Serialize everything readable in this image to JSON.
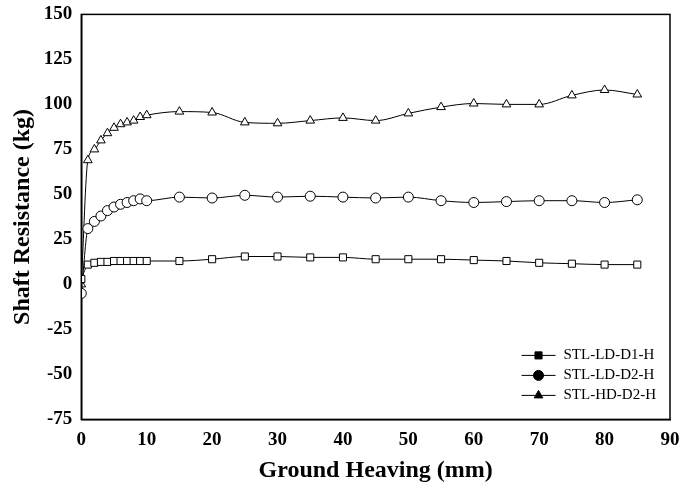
{
  "chart_data": {
    "type": "line",
    "x_label": "Ground Heaving (mm)",
    "y_label": "Shaft Resistance (kg)",
    "x": [
      0,
      1,
      2,
      3,
      4,
      5,
      6,
      7,
      8,
      9,
      10,
      15,
      20,
      25,
      30,
      35,
      40,
      45,
      50,
      55,
      60,
      65,
      70,
      75,
      80,
      85
    ],
    "series": [
      {
        "name": "STL-LD-D1-H",
        "color": "#000000",
        "marker": "square",
        "values": [
          3,
          11,
          12,
          12.5,
          12.5,
          13,
          13,
          13,
          13,
          13,
          13,
          13,
          14,
          15.5,
          15.5,
          15,
          15,
          14,
          14,
          14,
          13.5,
          13,
          12,
          11.5,
          11,
          11
        ]
      },
      {
        "name": "STL-LD-D2-H",
        "color": "#000000",
        "marker": "circle",
        "values": [
          -5,
          31,
          35,
          38,
          41,
          43,
          44.5,
          45.5,
          46.5,
          47.5,
          46.5,
          48.5,
          48,
          49.5,
          48.5,
          49,
          48.5,
          48,
          48.5,
          46.5,
          45.5,
          46,
          46.5,
          46.5,
          45.5,
          47
        ]
      },
      {
        "name": "STL-HD-D2-H",
        "color": "#000000",
        "marker": "triangle",
        "values": [
          0,
          69,
          75,
          80,
          84,
          87,
          89,
          90,
          91,
          93,
          94,
          96,
          95.5,
          90,
          89.5,
          91,
          92.5,
          91,
          95,
          98.5,
          100.5,
          100,
          100,
          105,
          108,
          105.5
        ]
      }
    ],
    "xlim": [
      0,
      90
    ],
    "xticks": [
      0,
      10,
      20,
      30,
      40,
      50,
      60,
      70,
      80,
      90
    ],
    "ylim": [
      -75,
      150
    ],
    "yticks": [
      -75,
      -50,
      -25,
      0,
      25,
      50,
      75,
      100,
      125,
      150
    ],
    "grid": false,
    "legend": "lower right"
  }
}
